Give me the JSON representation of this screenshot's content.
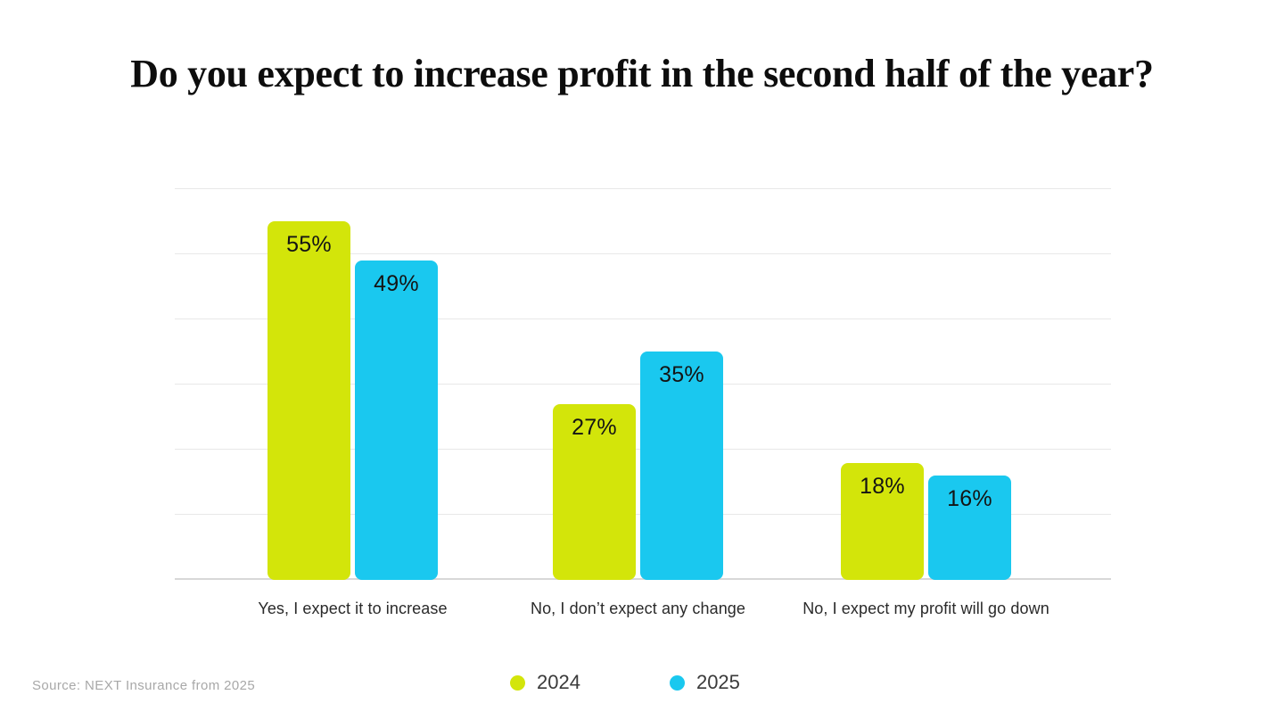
{
  "chart_data": {
    "type": "bar",
    "title": "Do you expect to increase profit in the second half of the year?",
    "categories": [
      "Yes, I expect it to increase",
      "No, I don’t expect any change",
      "No, I expect my profit will go down"
    ],
    "series": [
      {
        "name": "2024",
        "color": "#d3e50a",
        "values": [
          55,
          27,
          18
        ]
      },
      {
        "name": "2025",
        "color": "#1ac8ef",
        "values": [
          49,
          35,
          16
        ]
      }
    ],
    "value_suffix": "%",
    "ylim": [
      0,
      60
    ],
    "gridline_step": 10,
    "grid": true,
    "value_labels": "inside-top",
    "legend_position": "bottom",
    "source": "Source: NEXT Insurance from 2025",
    "colors": {
      "gridline": "#e8e8e8",
      "baseline": "#d8d8d8",
      "value_label": "#141414",
      "axis_label": "#2a2a2a",
      "legend_label": "#3a3a3a",
      "source_text": "#a8a8a8",
      "title": "#0d0d0d",
      "background": "#ffffff"
    }
  }
}
